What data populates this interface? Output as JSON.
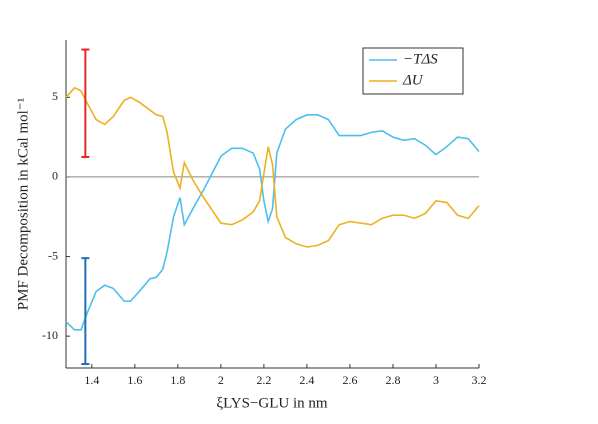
{
  "chart_data": {
    "type": "line",
    "xlabel": "ξLYS−GLU in nm",
    "ylabel": "PMF Decomposition in kCal mol⁻¹",
    "x": [
      1.28,
      1.32,
      1.35,
      1.38,
      1.42,
      1.46,
      1.5,
      1.55,
      1.58,
      1.62,
      1.67,
      1.7,
      1.73,
      1.75,
      1.78,
      1.81,
      1.83,
      1.87,
      1.92,
      1.97,
      2.0,
      2.05,
      2.1,
      2.15,
      2.18,
      2.2,
      2.22,
      2.24,
      2.26,
      2.3,
      2.35,
      2.4,
      2.45,
      2.5,
      2.55,
      2.6,
      2.65,
      2.7,
      2.75,
      2.8,
      2.85,
      2.9,
      2.95,
      3.0,
      3.05,
      3.1,
      3.15,
      3.2
    ],
    "series": [
      {
        "name": "−TΔS",
        "color": "#4dbeee",
        "values": [
          -9.1,
          -9.6,
          -9.6,
          -8.5,
          -7.2,
          -6.8,
          -7.0,
          -7.8,
          -7.8,
          -7.2,
          -6.4,
          -6.3,
          -5.8,
          -4.7,
          -2.5,
          -1.3,
          -3.0,
          -2.0,
          -0.8,
          0.5,
          1.3,
          1.8,
          1.8,
          1.5,
          0.5,
          -1.5,
          -2.8,
          -2.0,
          1.5,
          3.0,
          3.6,
          3.9,
          3.9,
          3.6,
          2.6,
          2.6,
          2.6,
          2.8,
          2.9,
          2.5,
          2.3,
          2.4,
          2.0,
          1.4,
          1.9,
          2.5,
          2.4,
          1.6
        ]
      },
      {
        "name": "ΔU",
        "color": "#edb120",
        "values": [
          5.0,
          5.6,
          5.4,
          4.6,
          3.6,
          3.3,
          3.8,
          4.8,
          5.0,
          4.7,
          4.2,
          3.9,
          3.8,
          2.8,
          0.3,
          -0.7,
          0.9,
          -0.2,
          -1.3,
          -2.3,
          -2.9,
          -3.0,
          -2.7,
          -2.2,
          -1.5,
          0.2,
          1.9,
          0.8,
          -2.5,
          -3.8,
          -4.2,
          -4.4,
          -4.3,
          -4.0,
          -3.0,
          -2.8,
          -2.9,
          -3.0,
          -2.6,
          -2.4,
          -2.4,
          -2.6,
          -2.3,
          -1.5,
          -1.6,
          -2.4,
          -2.6,
          -1.8
        ]
      }
    ],
    "error_bars": [
      {
        "x": 1.37,
        "low": 1.25,
        "high": 8.0,
        "color": "#e8262a"
      },
      {
        "x": 1.37,
        "low": -11.75,
        "high": -5.1,
        "color": "#1f6fb4"
      }
    ],
    "hline": 0,
    "hline_color": "#888888",
    "xlim": [
      1.28,
      3.2
    ],
    "ylim": [
      -12,
      8.6
    ],
    "xticks": [
      1.4,
      1.6,
      1.8,
      2,
      2.2,
      2.4,
      2.6,
      2.8,
      3,
      3.2
    ],
    "yticks": [
      -10,
      -5,
      0,
      5
    ],
    "legend": "northeast"
  }
}
